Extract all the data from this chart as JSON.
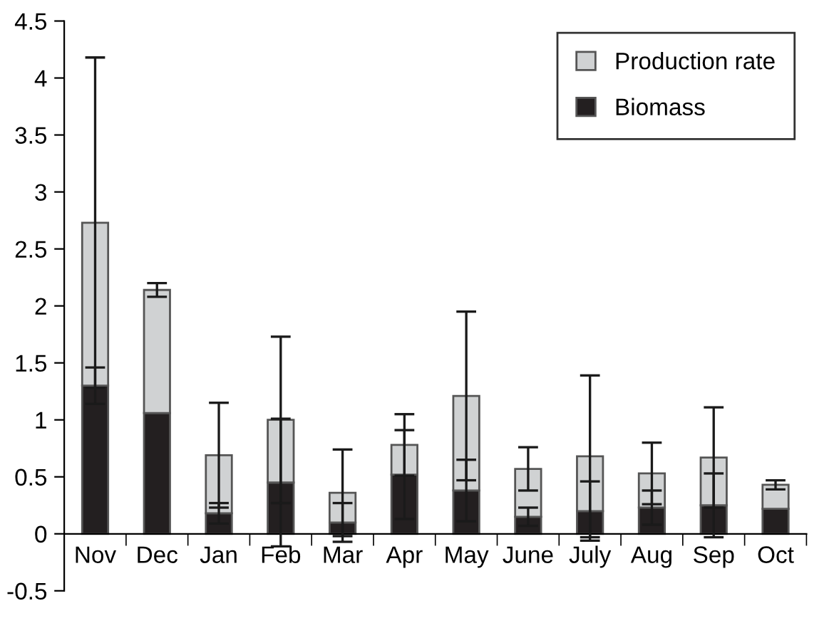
{
  "chart_data": {
    "type": "bar",
    "stacked": true,
    "categories": [
      "Nov",
      "Dec",
      "Jan",
      "Feb",
      "Mar",
      "Apr",
      "May",
      "June",
      "July",
      "Aug",
      "Sep",
      "Oct"
    ],
    "series": [
      {
        "name": "Biomass",
        "color": "#231f20",
        "values": [
          1.3,
          1.06,
          0.18,
          0.45,
          0.1,
          0.52,
          0.38,
          0.15,
          0.2,
          0.23,
          0.25,
          0.22
        ],
        "errors": [
          0.16,
          null,
          0.09,
          0.56,
          0.17,
          0.39,
          0.27,
          0.08,
          0.26,
          0.15,
          0.28,
          null
        ]
      },
      {
        "name": "Production rate",
        "color": "#d0d2d3",
        "values": [
          1.43,
          1.08,
          0.51,
          0.55,
          0.26,
          0.26,
          0.83,
          0.42,
          0.48,
          0.3,
          0.42,
          0.21
        ],
        "errors": [
          1.45,
          0.06,
          0.46,
          0.73,
          0.38,
          0.27,
          0.74,
          0.19,
          0.71,
          0.27,
          0.44,
          0.04
        ]
      }
    ],
    "ylim": [
      -0.5,
      4.5
    ],
    "yticks": [
      -0.5,
      0,
      0.5,
      1,
      1.5,
      2,
      2.5,
      3,
      3.5,
      4,
      4.5
    ],
    "grid": false,
    "legend": "top right"
  }
}
